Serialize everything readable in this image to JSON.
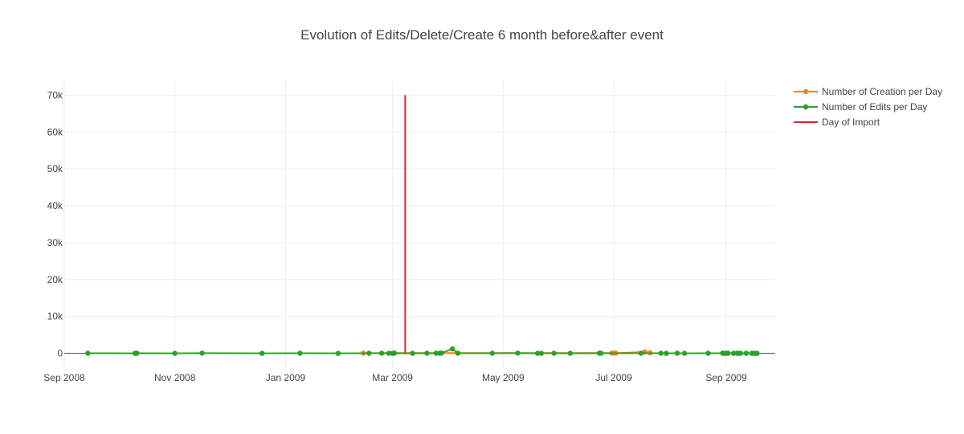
{
  "chart_data": {
    "type": "line",
    "title": "Evolution of Edits/Delete/Create 6 month before&after event",
    "xlabel": "",
    "ylabel": "",
    "x_axis": {
      "type": "date",
      "range": [
        "2008-09-01",
        "2009-09-28"
      ],
      "tick_values": [
        "2008-09-01",
        "2008-11-01",
        "2009-01-01",
        "2009-03-01",
        "2009-05-01",
        "2009-07-01",
        "2009-09-01"
      ],
      "tick_labels": [
        "Sep 2008",
        "Nov 2008",
        "Jan 2009",
        "Mar 2009",
        "May 2009",
        "Jul 2009",
        "Sep 2009"
      ]
    },
    "y_axis": {
      "range": [
        -4000,
        74000
      ],
      "tick_values": [
        0,
        10000,
        20000,
        30000,
        40000,
        50000,
        60000,
        70000
      ],
      "tick_labels": [
        "0",
        "10k",
        "20k",
        "30k",
        "40k",
        "50k",
        "60k",
        "70k"
      ]
    },
    "grid": true,
    "legend_position": "top-right",
    "series": [
      {
        "name": "Number of Creation per Day",
        "color": "#ff7f0e",
        "mode": "lines+markers",
        "points": [
          [
            "2009-02-13",
            50
          ],
          [
            "2009-03-02",
            100
          ],
          [
            "2009-06-30",
            80
          ],
          [
            "2009-07-02",
            60
          ],
          [
            "2009-07-18",
            350
          ],
          [
            "2009-07-21",
            150
          ]
        ]
      },
      {
        "name": "Number of Edits per Day",
        "color": "#2ca02c",
        "mode": "lines+markers",
        "points": [
          [
            "2008-09-14",
            20
          ],
          [
            "2008-10-10",
            10
          ],
          [
            "2008-10-11",
            20
          ],
          [
            "2008-11-01",
            10
          ],
          [
            "2008-11-16",
            50
          ],
          [
            "2008-12-19",
            10
          ],
          [
            "2009-01-09",
            20
          ],
          [
            "2009-01-30",
            10
          ],
          [
            "2009-02-16",
            30
          ],
          [
            "2009-02-23",
            20
          ],
          [
            "2009-02-27",
            10
          ],
          [
            "2009-03-01",
            10
          ],
          [
            "2009-03-02",
            20
          ],
          [
            "2009-03-12",
            10
          ],
          [
            "2009-03-20",
            20
          ],
          [
            "2009-03-25",
            30
          ],
          [
            "2009-03-27",
            60
          ],
          [
            "2009-03-28",
            80
          ],
          [
            "2009-04-03",
            1200
          ],
          [
            "2009-04-06",
            20
          ],
          [
            "2009-04-25",
            20
          ],
          [
            "2009-05-09",
            60
          ],
          [
            "2009-05-20",
            10
          ],
          [
            "2009-05-22",
            10
          ],
          [
            "2009-05-29",
            20
          ],
          [
            "2009-06-07",
            10
          ],
          [
            "2009-06-23",
            30
          ],
          [
            "2009-06-24",
            20
          ],
          [
            "2009-07-16",
            20
          ],
          [
            "2009-07-27",
            20
          ],
          [
            "2009-07-30",
            10
          ],
          [
            "2009-08-05",
            20
          ],
          [
            "2009-08-09",
            10
          ],
          [
            "2009-08-22",
            20
          ],
          [
            "2009-08-30",
            20
          ],
          [
            "2009-08-31",
            10
          ],
          [
            "2009-09-01",
            10
          ],
          [
            "2009-09-02",
            30
          ],
          [
            "2009-09-05",
            10
          ],
          [
            "2009-09-07",
            20
          ],
          [
            "2009-09-08",
            10
          ],
          [
            "2009-09-09",
            10
          ],
          [
            "2009-09-12",
            20
          ],
          [
            "2009-09-15",
            10
          ],
          [
            "2009-09-16",
            10
          ],
          [
            "2009-09-17",
            10
          ],
          [
            "2009-09-18",
            10
          ]
        ]
      },
      {
        "name": "Day of Import",
        "color": "#d62728",
        "mode": "lines",
        "points": [
          [
            "2009-03-08",
            0
          ],
          [
            "2009-03-08",
            70000
          ]
        ]
      }
    ]
  }
}
